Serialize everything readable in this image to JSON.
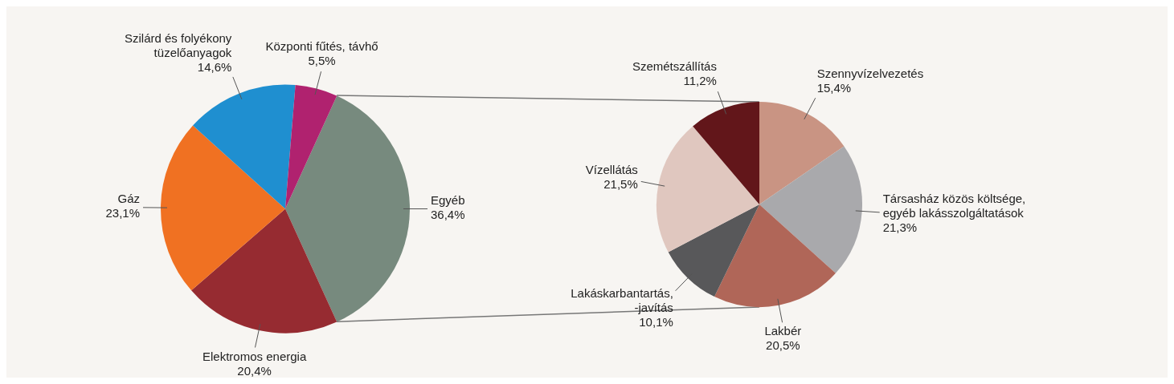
{
  "chart_data": [
    {
      "type": "pie",
      "categories": [
        "Egyéb",
        "Elektromos energia",
        "Gáz",
        "Szilárd és folyékony tüzelőanyagok",
        "Központi fűtés, távhő"
      ],
      "values": [
        36.4,
        20.4,
        23.1,
        14.6,
        5.5
      ],
      "value_labels": [
        "36,4%",
        "20,4%",
        "23,1%",
        "14,6%",
        "5,5%"
      ],
      "colors": [
        "#778a7e",
        "#962b31",
        "#f07122",
        "#1f8fd0",
        "#b0226f"
      ]
    },
    {
      "type": "pie",
      "categories": [
        "Szennyvízelvezetés",
        "Társasház közös költsége, egyéb lakásszolgáltatások",
        "Lakbér",
        "Lakáskarbantartás, -javítás",
        "Vízellátás",
        "Szemétszállítás"
      ],
      "values": [
        15.4,
        21.3,
        20.5,
        10.1,
        21.5,
        11.2
      ],
      "value_labels": [
        "15,4%",
        "21,3%",
        "20,5%",
        "10,1%",
        "21,5%",
        "11,2%"
      ],
      "colors": [
        "#c99483",
        "#a9a9ac",
        "#b06658",
        "#58585a",
        "#e0c7bf",
        "#62161a"
      ]
    }
  ]
}
